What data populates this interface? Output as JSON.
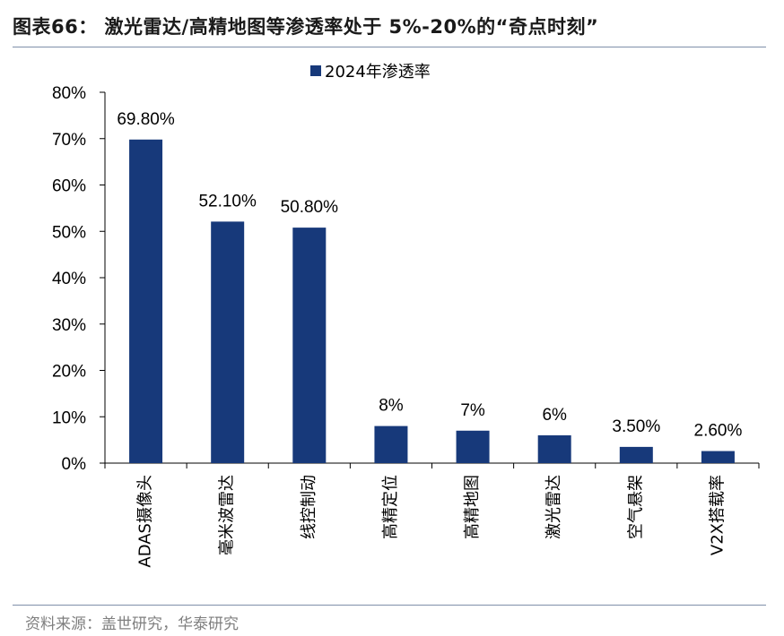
{
  "header": {
    "title": "图表66：  激光雷达/高精地图等渗透率处于 5%-20%的“奇点时刻”"
  },
  "footer": {
    "source": "资料来源：盖世研究，华泰研究"
  },
  "colors": {
    "bar": "#17397a",
    "rule": "#7f8fa9",
    "axis": "#000000"
  },
  "chart_data": {
    "type": "bar",
    "title": "",
    "xlabel": "",
    "ylabel": "",
    "ylim": [
      0,
      80
    ],
    "yticks": [
      0,
      10,
      20,
      30,
      40,
      50,
      60,
      70,
      80
    ],
    "ytick_labels": [
      "0%",
      "10%",
      "20%",
      "30%",
      "40%",
      "50%",
      "60%",
      "70%",
      "80%"
    ],
    "grid": false,
    "legend_position": "top-center",
    "categories": [
      "ADAS摄像头",
      "毫米波雷达",
      "线控制动",
      "高精定位",
      "高精地图",
      "激光雷达",
      "空气悬架",
      "V2X搭载率"
    ],
    "series": [
      {
        "name": "2024年渗透率",
        "values": [
          69.8,
          52.1,
          50.8,
          8,
          7,
          6,
          3.5,
          2.6
        ],
        "labels": [
          "69.80%",
          "52.10%",
          "50.80%",
          "8%",
          "7%",
          "6%",
          "3.50%",
          "2.60%"
        ]
      }
    ]
  }
}
